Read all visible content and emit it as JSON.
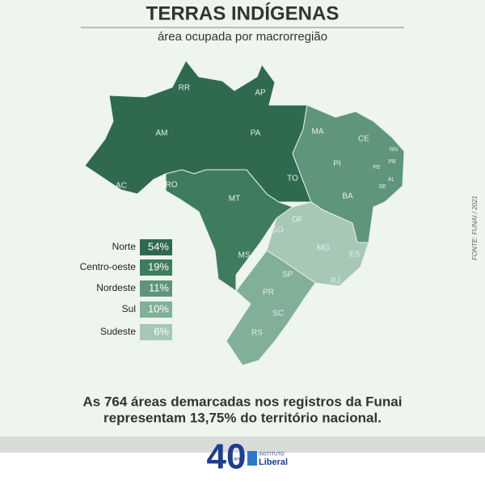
{
  "header": {
    "title": "TERRAS INDÍGENAS",
    "subtitle": "área ocupada por macrorregião"
  },
  "regions": {
    "names": [
      "Norte",
      "Centro-oeste",
      "Nordeste",
      "Sul",
      "Sudeste"
    ],
    "values": [
      54,
      19,
      11,
      10,
      6
    ],
    "value_labels": [
      "54%",
      "19%",
      "11%",
      "10%",
      "6%"
    ],
    "colors": [
      "#2f6a4f",
      "#3f7c5e",
      "#5f957b",
      "#82af98",
      "#a6c8b5"
    ]
  },
  "states": [
    "RR",
    "AP",
    "AM",
    "PA",
    "MA",
    "CE",
    "RN",
    "PB",
    "PE",
    "AL",
    "SE",
    "PI",
    "AC",
    "RO",
    "TO",
    "BA",
    "MT",
    "DF",
    "GO",
    "MG",
    "ES",
    "MS",
    "SP",
    "RJ",
    "PR",
    "SC",
    "RS"
  ],
  "footer": {
    "line1": "As 764 áreas demarcadas nos registros da Funai",
    "line2": "representam 13,75% do território nacional."
  },
  "source": "FONTE: FUNAI / 2021",
  "logo": {
    "number": "40",
    "small": "anos",
    "org_top": "INSTITUTO",
    "org_name": "Liberal"
  }
}
